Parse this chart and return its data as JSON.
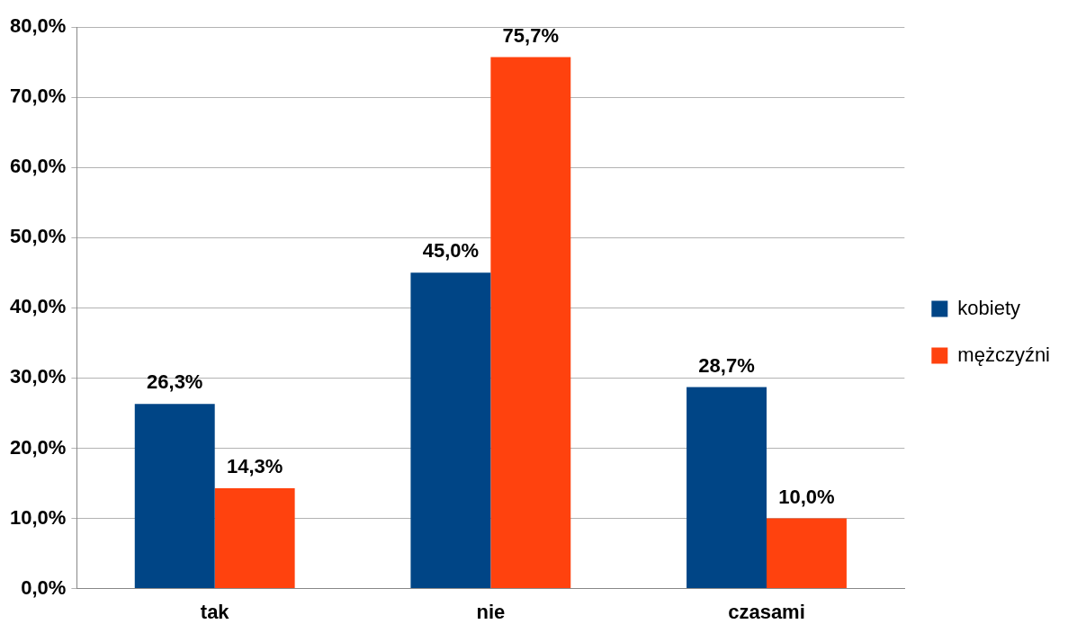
{
  "chart_data": {
    "type": "bar",
    "categories": [
      "tak",
      "nie",
      "czasami"
    ],
    "series": [
      {
        "name": "kobiety",
        "color": "#004586",
        "values": [
          26.3,
          45.0,
          28.7
        ],
        "value_labels": [
          "26,3%",
          "45,0%",
          "28,7%"
        ]
      },
      {
        "name": "mężczyźni",
        "color": "#ff420e",
        "values": [
          14.3,
          75.7,
          10.0
        ],
        "value_labels": [
          "14,3%",
          "75,7%",
          "10,0%"
        ]
      }
    ],
    "ylim": [
      0,
      80
    ],
    "yticks": [
      {
        "value": 0,
        "label": "0,0%"
      },
      {
        "value": 10,
        "label": "10,0%"
      },
      {
        "value": 20,
        "label": "20,0%"
      },
      {
        "value": 30,
        "label": "30,0%"
      },
      {
        "value": 40,
        "label": "40,0%"
      },
      {
        "value": 50,
        "label": "50,0%"
      },
      {
        "value": 60,
        "label": "60,0%"
      },
      {
        "value": 70,
        "label": "70,0%"
      },
      {
        "value": 80,
        "label": "80,0%"
      }
    ],
    "grid": "y",
    "legend": "right"
  }
}
